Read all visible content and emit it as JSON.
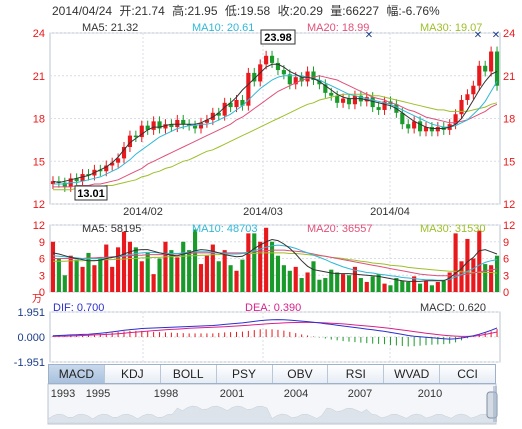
{
  "header": {
    "date": "2014/04/24",
    "open_label": "开:",
    "open": "21.74",
    "high_label": "高:",
    "high": "21.95",
    "low_label": "低:",
    "low": "19.58",
    "close_label": "收:",
    "close": "20.29",
    "volume_label": "量:",
    "volume": "66227",
    "change_label": "幅:",
    "change": "-6.76%"
  },
  "colors": {
    "up": "#e8191c",
    "down": "#1a9a2a",
    "ma5": "#333333",
    "ma10": "#30b8d8",
    "ma20": "#e0507a",
    "ma30": "#9cbf2a",
    "dif": "#2d2fcf",
    "dea": "#d8208c"
  },
  "chart_data": [
    {
      "type": "candlestick",
      "name": "price",
      "ylim": [
        12,
        24
      ],
      "y_ticks": [
        "12",
        "15",
        "18",
        "21",
        "24"
      ],
      "x_labels": [
        "2014/02",
        "2014/03",
        "2014/04"
      ],
      "annotations": {
        "max": "23.98",
        "min": "13.01"
      },
      "ma_legend": [
        {
          "label": "MA5:",
          "value": "21.32"
        },
        {
          "label": "MA10:",
          "value": "20.61"
        },
        {
          "label": "MA20:",
          "value": "18.99"
        },
        {
          "label": "MA30:",
          "value": "19.07"
        }
      ],
      "close": [
        13.6,
        13.5,
        13.2,
        13.8,
        13.6,
        14.1,
        14.0,
        14.4,
        14.3,
        14.7,
        14.9,
        15.2,
        16.0,
        16.8,
        16.7,
        17.5,
        17.2,
        17.8,
        17.3,
        17.6,
        17.4,
        17.9,
        17.6,
        17.5,
        17.3,
        17.7,
        17.9,
        18.4,
        18.2,
        19.1,
        18.8,
        19.3,
        18.9,
        21.2,
        20.6,
        21.8,
        22.4,
        21.9,
        21.4,
        21.1,
        20.4,
        20.9,
        20.6,
        21.3,
        20.7,
        20.4,
        19.8,
        19.6,
        19.1,
        19.4,
        19.0,
        19.6,
        19.2,
        19.5,
        18.8,
        18.6,
        19.2,
        19.0,
        18.4,
        17.6,
        17.3,
        17.8,
        17.1,
        17.4,
        17.1,
        17.4,
        17.2,
        17.6,
        18.3,
        19.3,
        19.7,
        20.3,
        21.7,
        21.3,
        22.7,
        20.3
      ],
      "ma5": [
        13.6,
        13.5,
        13.6,
        13.7,
        13.8,
        13.9,
        14.0,
        14.2,
        14.4,
        14.6,
        14.9,
        15.3,
        15.8,
        16.3,
        16.6,
        16.9,
        17.2,
        17.4,
        17.4,
        17.5,
        17.6,
        17.6,
        17.6,
        17.6,
        17.6,
        17.7,
        17.9,
        18.1,
        18.4,
        18.8,
        19.1,
        19.5,
        20.0,
        20.4,
        20.8,
        21.2,
        21.6,
        21.8,
        21.8,
        21.6,
        21.3,
        21.1,
        20.9,
        20.9,
        20.8,
        20.6,
        20.3,
        20.0,
        19.7,
        19.5,
        19.4,
        19.4,
        19.4,
        19.3,
        19.2,
        19.1,
        19.0,
        18.9,
        18.7,
        18.4,
        18.1,
        17.8,
        17.6,
        17.4,
        17.3,
        17.3,
        17.3,
        17.4,
        17.6,
        18.0,
        18.6,
        19.3,
        20.0,
        20.6,
        21.1,
        21.3
      ],
      "ma10": [
        13.4,
        13.4,
        13.4,
        13.5,
        13.5,
        13.6,
        13.7,
        13.8,
        13.9,
        14.1,
        14.3,
        14.5,
        14.8,
        15.1,
        15.5,
        15.8,
        16.1,
        16.4,
        16.7,
        16.9,
        17.1,
        17.3,
        17.4,
        17.5,
        17.5,
        17.6,
        17.6,
        17.7,
        17.9,
        18.1,
        18.3,
        18.6,
        18.9,
        19.3,
        19.7,
        20.1,
        20.4,
        20.7,
        20.9,
        21.0,
        21.0,
        21.0,
        21.0,
        20.9,
        20.8,
        20.7,
        20.5,
        20.3,
        20.1,
        19.9,
        19.7,
        19.6,
        19.5,
        19.4,
        19.3,
        19.2,
        19.1,
        19.0,
        18.8,
        18.6,
        18.4,
        18.2,
        18.0,
        17.8,
        17.6,
        17.5,
        17.4,
        17.4,
        17.5,
        17.7,
        17.9,
        18.3,
        18.7,
        19.2,
        19.9,
        20.6
      ],
      "ma20": [
        13.2,
        13.2,
        13.2,
        13.2,
        13.3,
        13.3,
        13.3,
        13.4,
        13.4,
        13.5,
        13.6,
        13.7,
        13.9,
        14.1,
        14.3,
        14.5,
        14.8,
        15.0,
        15.2,
        15.4,
        15.6,
        15.8,
        16.0,
        16.2,
        16.4,
        16.6,
        16.8,
        17.0,
        17.2,
        17.4,
        17.6,
        17.9,
        18.1,
        18.4,
        18.7,
        19.0,
        19.3,
        19.6,
        19.9,
        20.1,
        20.3,
        20.5,
        20.7,
        20.8,
        20.9,
        21.0,
        20.9,
        20.8,
        20.7,
        20.5,
        20.3,
        20.1,
        19.9,
        19.7,
        19.5,
        19.4,
        19.3,
        19.1,
        19.0,
        18.8,
        18.6,
        18.5,
        18.3,
        18.1,
        18.0,
        17.9,
        17.8,
        17.7,
        17.7,
        17.8,
        17.9,
        18.1,
        18.3,
        18.5,
        18.8,
        19.0
      ],
      "ma30": [
        13.0,
        13.0,
        13.0,
        13.0,
        13.1,
        13.1,
        13.1,
        13.2,
        13.2,
        13.3,
        13.3,
        13.4,
        13.5,
        13.6,
        13.7,
        13.9,
        14.0,
        14.2,
        14.3,
        14.5,
        14.6,
        14.8,
        15.0,
        15.1,
        15.3,
        15.5,
        15.7,
        15.8,
        16.0,
        16.2,
        16.4,
        16.6,
        16.8,
        17.0,
        17.2,
        17.4,
        17.6,
        17.8,
        18.0,
        18.2,
        18.4,
        18.6,
        18.8,
        19.0,
        19.1,
        19.3,
        19.4,
        19.5,
        19.6,
        19.7,
        19.7,
        19.7,
        19.7,
        19.7,
        19.6,
        19.6,
        19.5,
        19.4,
        19.3,
        19.2,
        19.1,
        19.0,
        18.9,
        18.8,
        18.7,
        18.6,
        18.6,
        18.5,
        18.5,
        18.5,
        18.5,
        18.6,
        18.7,
        18.8,
        19.0,
        19.1
      ]
    },
    {
      "type": "bar",
      "name": "volume",
      "ylim": [
        0,
        12
      ],
      "y_ticks": [
        "0",
        "3",
        "6",
        "9",
        "12"
      ],
      "unit": "万",
      "ma_legend": [
        {
          "label": "MA5:",
          "value": "58195"
        },
        {
          "label": "MA10:",
          "value": "48703"
        },
        {
          "label": "MA20:",
          "value": "36557"
        },
        {
          "label": "MA30:",
          "value": "31530"
        }
      ],
      "values": [
        9.0,
        6.0,
        3.0,
        6.5,
        5.8,
        4.5,
        7.0,
        4.8,
        6.2,
        8.5,
        4.5,
        8.0,
        10.8,
        9.0,
        8.0,
        5.5,
        7.0,
        3.2,
        6.0,
        9.0,
        7.5,
        6.2,
        9.0,
        7.5,
        11.2,
        5.0,
        6.5,
        8.5,
        5.5,
        7.5,
        4.8,
        3.8,
        5.8,
        10.5,
        10.5,
        9.0,
        11.5,
        9.0,
        6.5,
        4.8,
        3.8,
        4.5,
        2.5,
        3.5,
        5.5,
        2.2,
        2.5,
        4.0,
        3.5,
        3.2,
        3.0,
        4.5,
        2.5,
        1.8,
        2.8,
        3.2,
        1.5,
        1.2,
        2.5,
        2.0,
        1.8,
        2.8,
        1.5,
        2.0,
        1.2,
        1.8,
        2.0,
        3.5,
        10.5,
        5.5,
        9.5,
        6.0,
        11.0,
        5.0,
        4.8,
        6.5
      ],
      "ma5": [
        7.0,
        6.8,
        6.5,
        6.2,
        6.0,
        5.8,
        5.6,
        5.6,
        5.7,
        6.0,
        6.2,
        6.4,
        6.8,
        7.2,
        7.5,
        7.6,
        7.6,
        7.3,
        7.0,
        6.8,
        6.6,
        6.5,
        6.8,
        7.0,
        7.4,
        7.6,
        7.5,
        7.3,
        7.0,
        6.7,
        6.5,
        6.3,
        6.4,
        7.0,
        7.8,
        8.4,
        9.0,
        9.4,
        9.2,
        8.6,
        7.8,
        6.8,
        5.6,
        4.6,
        4.0,
        3.8,
        3.6,
        3.4,
        3.3,
        3.3,
        3.3,
        3.2,
        3.1,
        3.0,
        2.9,
        2.8,
        2.6,
        2.4,
        2.2,
        2.0,
        1.9,
        1.9,
        1.9,
        2.0,
        2.0,
        2.0,
        2.0,
        2.5,
        3.4,
        4.2,
        5.4,
        6.2,
        7.4,
        7.6,
        7.2,
        6.8
      ],
      "ma10": [
        6.5,
        6.4,
        6.3,
        6.2,
        6.1,
        6.0,
        6.0,
        6.0,
        6.0,
        6.1,
        6.2,
        6.3,
        6.5,
        6.7,
        6.9,
        7.0,
        7.1,
        7.1,
        7.0,
        6.9,
        6.9,
        6.9,
        7.0,
        7.1,
        7.2,
        7.2,
        7.2,
        7.1,
        7.0,
        6.9,
        6.8,
        6.8,
        6.9,
        7.1,
        7.4,
        7.7,
        8.0,
        8.3,
        8.4,
        8.3,
        8.1,
        7.8,
        7.4,
        7.0,
        6.6,
        6.2,
        5.8,
        5.3,
        4.9,
        4.5,
        4.2,
        3.9,
        3.7,
        3.5,
        3.4,
        3.2,
        3.1,
        2.9,
        2.8,
        2.6,
        2.5,
        2.4,
        2.3,
        2.2,
        2.2,
        2.1,
        2.1,
        2.3,
        2.7,
        3.1,
        3.7,
        4.2,
        4.8,
        5.3,
        5.6,
        5.8
      ],
      "ma20": [
        6.0,
        6.0,
        6.0,
        6.0,
        6.0,
        6.0,
        6.1,
        6.1,
        6.2,
        6.2,
        6.3,
        6.3,
        6.4,
        6.5,
        6.6,
        6.6,
        6.7,
        6.7,
        6.7,
        6.7,
        6.8,
        6.8,
        6.9,
        6.9,
        7.0,
        7.0,
        7.0,
        7.0,
        7.0,
        7.0,
        7.0,
        7.0,
        7.0,
        7.1,
        7.2,
        7.3,
        7.4,
        7.5,
        7.5,
        7.5,
        7.4,
        7.3,
        7.2,
        7.0,
        6.8,
        6.6,
        6.4,
        6.2,
        6.0,
        5.8,
        5.6,
        5.4,
        5.2,
        5.0,
        4.8,
        4.6,
        4.4,
        4.2,
        4.0,
        3.8,
        3.6,
        3.4,
        3.2,
        3.1,
        3.0,
        2.9,
        2.9,
        2.9,
        3.0,
        3.1,
        3.2,
        3.4,
        3.6,
        3.8,
        4.0,
        4.1
      ],
      "ma30": [
        5.5,
        5.5,
        5.5,
        5.6,
        5.6,
        5.6,
        5.7,
        5.7,
        5.7,
        5.8,
        5.8,
        5.9,
        5.9,
        6.0,
        6.0,
        6.1,
        6.1,
        6.2,
        6.2,
        6.3,
        6.3,
        6.4,
        6.4,
        6.5,
        6.5,
        6.6,
        6.6,
        6.7,
        6.7,
        6.8,
        6.8,
        6.8,
        6.9,
        6.9,
        6.9,
        7.0,
        7.0,
        7.0,
        7.0,
        7.0,
        6.9,
        6.9,
        6.8,
        6.7,
        6.6,
        6.5,
        6.4,
        6.2,
        6.1,
        6.0,
        5.8,
        5.7,
        5.5,
        5.4,
        5.2,
        5.1,
        5.0,
        4.8,
        4.7,
        4.6,
        4.4,
        4.3,
        4.2,
        4.1,
        4.0,
        3.9,
        3.8,
        3.7,
        3.7,
        3.6,
        3.6,
        3.5,
        3.5,
        3.5,
        3.5,
        3.4
      ]
    },
    {
      "type": "bar",
      "name": "macd",
      "ylim": [
        -1.951,
        1.951
      ],
      "y_ticks": [
        "1.951",
        "0.000",
        "-1.951"
      ],
      "legend": [
        {
          "label": "DIF:",
          "value": "0.700"
        },
        {
          "label": "DEA:",
          "value": "0.390"
        },
        {
          "label": "MACD:",
          "value": "0.620"
        }
      ],
      "dif": [
        0.1,
        0.12,
        0.14,
        0.16,
        0.18,
        0.2,
        0.22,
        0.26,
        0.3,
        0.34,
        0.4,
        0.46,
        0.52,
        0.58,
        0.62,
        0.66,
        0.68,
        0.7,
        0.72,
        0.74,
        0.76,
        0.78,
        0.8,
        0.82,
        0.84,
        0.86,
        0.88,
        0.9,
        0.94,
        0.98,
        1.02,
        1.06,
        1.1,
        1.16,
        1.22,
        1.28,
        1.32,
        1.35,
        1.36,
        1.35,
        1.32,
        1.28,
        1.24,
        1.2,
        1.15,
        1.1,
        1.04,
        0.98,
        0.92,
        0.86,
        0.8,
        0.74,
        0.68,
        0.62,
        0.56,
        0.5,
        0.44,
        0.36,
        0.28,
        0.2,
        0.12,
        0.06,
        0.02,
        -0.02,
        -0.06,
        -0.1,
        -0.14,
        -0.16,
        -0.14,
        -0.08,
        0.0,
        0.1,
        0.22,
        0.36,
        0.52,
        0.7
      ],
      "dea": [
        0.05,
        0.06,
        0.07,
        0.08,
        0.1,
        0.12,
        0.14,
        0.16,
        0.18,
        0.2,
        0.23,
        0.26,
        0.3,
        0.34,
        0.38,
        0.42,
        0.46,
        0.5,
        0.53,
        0.56,
        0.59,
        0.62,
        0.65,
        0.68,
        0.7,
        0.72,
        0.74,
        0.76,
        0.78,
        0.8,
        0.83,
        0.86,
        0.89,
        0.92,
        0.95,
        0.98,
        1.02,
        1.05,
        1.08,
        1.1,
        1.12,
        1.13,
        1.14,
        1.14,
        1.13,
        1.12,
        1.1,
        1.08,
        1.05,
        1.02,
        0.98,
        0.94,
        0.9,
        0.86,
        0.82,
        0.77,
        0.72,
        0.67,
        0.61,
        0.55,
        0.49,
        0.42,
        0.36,
        0.3,
        0.24,
        0.19,
        0.14,
        0.1,
        0.07,
        0.05,
        0.05,
        0.07,
        0.12,
        0.2,
        0.3,
        0.39
      ],
      "macd": [
        0.1,
        0.12,
        0.14,
        0.16,
        0.16,
        0.16,
        0.16,
        0.2,
        0.24,
        0.28,
        0.34,
        0.4,
        0.44,
        0.48,
        0.48,
        0.48,
        0.44,
        0.4,
        0.38,
        0.36,
        0.34,
        0.32,
        0.3,
        0.28,
        0.28,
        0.28,
        0.28,
        0.28,
        0.32,
        0.36,
        0.38,
        0.4,
        0.42,
        0.48,
        0.54,
        0.6,
        0.6,
        0.6,
        0.56,
        0.5,
        0.4,
        0.3,
        0.2,
        0.12,
        0.04,
        -0.04,
        -0.12,
        -0.2,
        -0.26,
        -0.32,
        -0.36,
        -0.4,
        -0.44,
        -0.48,
        -0.52,
        -0.54,
        -0.56,
        -0.62,
        -0.66,
        -0.7,
        -0.74,
        -0.72,
        -0.68,
        -0.64,
        -0.6,
        -0.58,
        -0.56,
        -0.52,
        -0.42,
        -0.26,
        -0.1,
        0.06,
        0.2,
        0.32,
        0.44,
        0.62
      ]
    }
  ],
  "indicator_tabs": [
    "MACD",
    "KDJ",
    "BOLL",
    "PSY",
    "OBV",
    "RSI",
    "WVAD",
    "CCI"
  ],
  "active_tab": "MACD",
  "navigator": {
    "years": [
      "1993",
      "1995",
      "1998",
      "2001",
      "2004",
      "2007",
      "2010"
    ]
  }
}
